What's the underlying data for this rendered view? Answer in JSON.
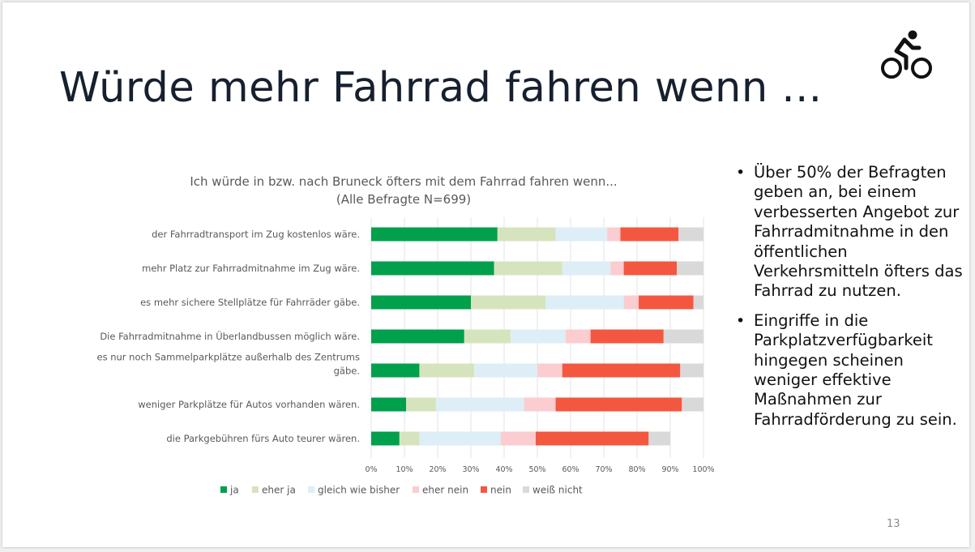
{
  "slide": {
    "title": "Würde mehr Fahrrad fahren wenn ...",
    "icon": "bicycle-icon",
    "page_number": "13"
  },
  "bullets": [
    "Über 50% der Befragten geben an, bei einem verbesserten Angebot zur Fahrradmitnahme in den öffentlichen Verkehrsmitteln öfters das Fahrrad zu nutzen.",
    "Eingriffe in die Parkplatzverfügbarkeit hingegen scheinen weniger effektive Maßnahmen zur Fahrradförderung zu sein."
  ],
  "chart_data": {
    "type": "bar",
    "orientation": "horizontal",
    "stacked": "percent",
    "title": "Ich würde in bzw. nach Bruneck öfters mit dem Fahrrad fahren wenn...",
    "subtitle": "(Alle Befragte N=699)",
    "xlim": [
      0,
      100
    ],
    "x_ticks": [
      "0%",
      "10%",
      "20%",
      "30%",
      "40%",
      "50%",
      "60%",
      "70%",
      "80%",
      "90%",
      "100%"
    ],
    "grid": true,
    "legend_position": "bottom",
    "categories": [
      [
        "der Fahrradtransport im Zug kostenlos wäre."
      ],
      [
        "mehr Platz zur Fahrradmitnahme im Zug wäre."
      ],
      [
        "es mehr sichere Stellplätze für Fahrräder gäbe."
      ],
      [
        "Die Fahrradmitnahme in Überlandbussen möglich wäre."
      ],
      [
        "es nur noch Sammelparkplätze außerhalb des Zentrums",
        "gäbe."
      ],
      [
        "weniger Parkplätze für Autos vorhanden wären."
      ],
      [
        "die Parkgebühren fürs Auto teurer wären."
      ]
    ],
    "series": [
      {
        "name": "ja",
        "color": "#00a04c",
        "values": [
          38,
          37,
          30,
          28,
          14.5,
          10.5,
          8.5
        ]
      },
      {
        "name": "eher ja",
        "color": "#d6e4be",
        "values": [
          17.5,
          20.5,
          22.5,
          14,
          16.5,
          9,
          6
        ]
      },
      {
        "name": "gleich wie bisher",
        "color": "#ddeef6",
        "values": [
          15.5,
          14.5,
          23.5,
          16.5,
          19,
          26.5,
          24.5
        ]
      },
      {
        "name": "eher nein",
        "color": "#fbcdd0",
        "values": [
          4,
          4,
          4.5,
          7.5,
          7.5,
          9.5,
          10.5
        ]
      },
      {
        "name": "nein",
        "color": "#f45740",
        "values": [
          17.5,
          16,
          16.5,
          22,
          35.5,
          38,
          34
        ]
      },
      {
        "name": "weiß nicht",
        "color": "#d9d9d9",
        "values": [
          7.5,
          8,
          3,
          12,
          7,
          6.5,
          6.5
        ]
      }
    ]
  }
}
